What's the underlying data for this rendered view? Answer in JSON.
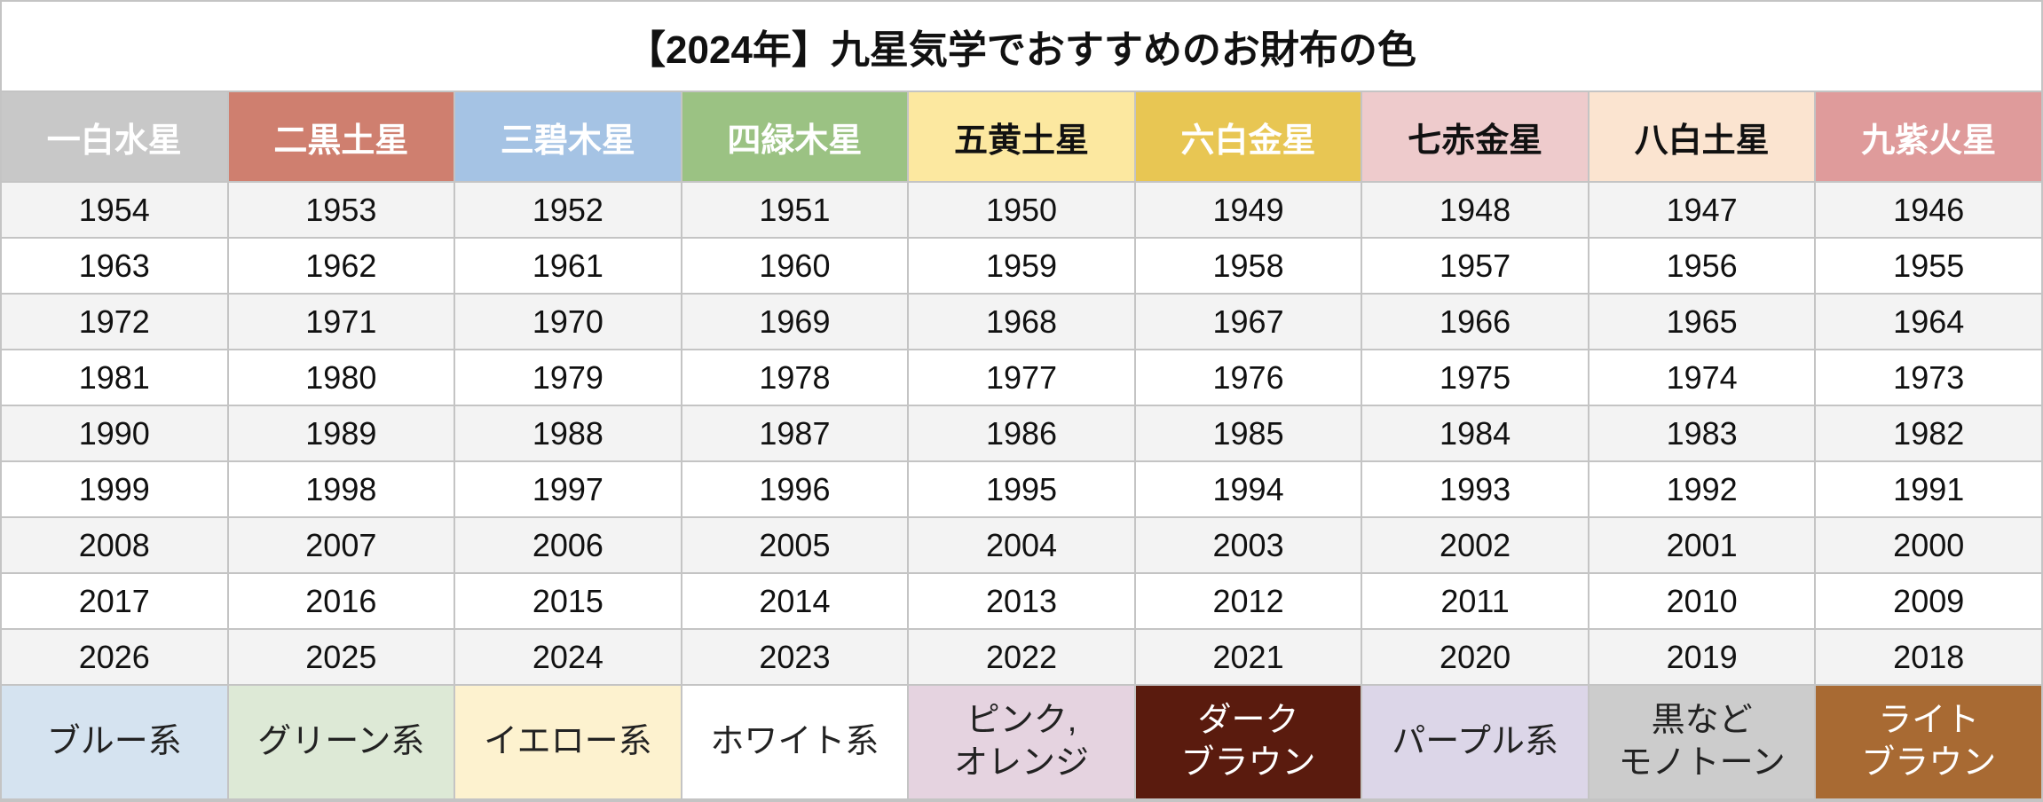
{
  "table": {
    "title": "【2024年】九星気学でおすすめのお財布の色",
    "header": [
      "一白水星",
      "二黒土星",
      "三碧木星",
      "四緑木星",
      "五黄土星",
      "六白金星",
      "七赤金星",
      "八白土星",
      "九紫火星"
    ],
    "rows": [
      [
        1954,
        1953,
        1952,
        1951,
        1950,
        1949,
        1948,
        1947,
        1946
      ],
      [
        1963,
        1962,
        1961,
        1960,
        1959,
        1958,
        1957,
        1956,
        1955
      ],
      [
        1972,
        1971,
        1970,
        1969,
        1968,
        1967,
        1966,
        1965,
        1964
      ],
      [
        1981,
        1980,
        1979,
        1978,
        1977,
        1976,
        1975,
        1974,
        1973
      ],
      [
        1990,
        1989,
        1988,
        1987,
        1986,
        1985,
        1984,
        1983,
        1982
      ],
      [
        1999,
        1998,
        1997,
        1996,
        1995,
        1994,
        1993,
        1992,
        1991
      ],
      [
        2008,
        2007,
        2006,
        2005,
        2004,
        2003,
        2002,
        2001,
        2000
      ],
      [
        2017,
        2016,
        2015,
        2014,
        2013,
        2012,
        2011,
        2010,
        2009
      ],
      [
        2026,
        2025,
        2024,
        2023,
        2022,
        2021,
        2020,
        2019,
        2018
      ]
    ],
    "colors": [
      "ブルー系",
      "グリーン系",
      "イエロー系",
      "ホワイト系",
      "ピンク,\nオレンジ",
      "ダーク\nブラウン",
      "パープル系",
      "黒など\nモノトーン",
      "ライト\nブラウン"
    ]
  }
}
